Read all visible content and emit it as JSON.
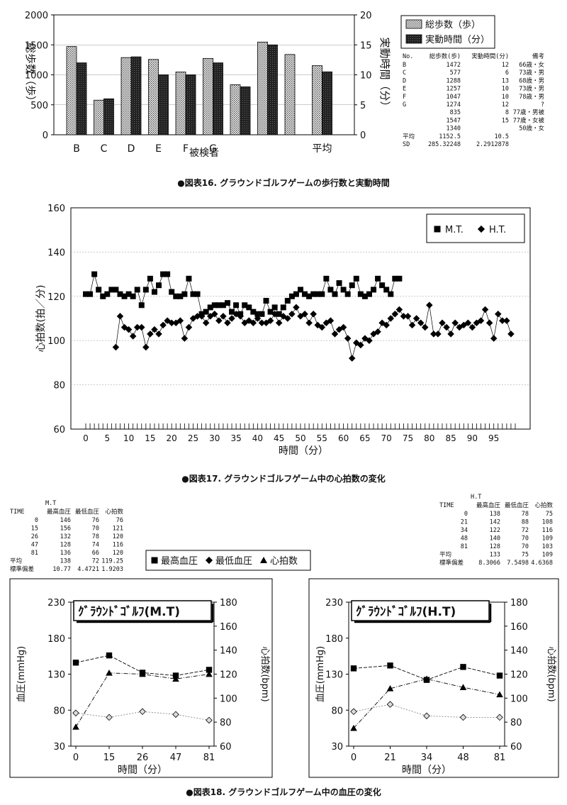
{
  "chart_data": [
    {
      "id": "fig16",
      "type": "bar",
      "caption": "●図表16. グラウンドゴルフゲームの歩行数と実動時間",
      "xlabel": "被検者",
      "ylabel_left": "総歩数（歩）",
      "ylabel_right": "実動時間（分）",
      "ylim_left": [
        0,
        2000
      ],
      "ylim_right": [
        0,
        20
      ],
      "left_ticks": [
        "0",
        "500",
        "1000",
        "1500",
        "2000"
      ],
      "right_ticks": [
        "0",
        "5",
        "10",
        "15",
        "20"
      ],
      "categories": [
        "B",
        "C",
        "D",
        "E",
        "F",
        "G",
        "",
        "",
        "",
        "平均"
      ],
      "series": [
        {
          "name": "総歩数（歩）",
          "axis": "left",
          "values": [
            1472,
            577,
            1288,
            1257,
            1047,
            1274,
            835,
            1547,
            1340,
            1152.5
          ]
        },
        {
          "name": "実動時間（分）",
          "axis": "right",
          "values": [
            12,
            6,
            13,
            10,
            10,
            12,
            8,
            15,
            null,
            10.5
          ]
        }
      ],
      "legend": "top-right",
      "table": {
        "headers": [
          "No.",
          "総歩数(歩)",
          "実動時間(分)",
          "備考"
        ],
        "rows": [
          [
            "B",
            "1472",
            "12",
            "66歳・女"
          ],
          [
            "C",
            "577",
            "6",
            "73歳・男"
          ],
          [
            "D",
            "1288",
            "13",
            "68歳・男"
          ],
          [
            "E",
            "1257",
            "10",
            "73歳・男"
          ],
          [
            "F",
            "1047",
            "10",
            "78歳・男"
          ],
          [
            "G",
            "1274",
            "12",
            "?"
          ],
          [
            "",
            "835",
            "8",
            "77歳・男被"
          ],
          [
            "",
            "1547",
            "15",
            "77歳・女被"
          ],
          [
            "",
            "1340",
            "",
            "50歳・女"
          ],
          [
            "平均",
            "1152.5",
            "10.5",
            ""
          ],
          [
            "SD",
            "285.32248",
            "2.2912878",
            ""
          ]
        ]
      }
    },
    {
      "id": "fig17",
      "type": "line",
      "caption": "●図表17. グラウンドゴルフゲーム中の心拍数の変化",
      "xlabel": "時間（分）",
      "ylabel": "心拍数(拍／分)",
      "ylim": [
        60,
        160
      ],
      "xlim": [
        0,
        100
      ],
      "x_ticks": [
        "0",
        "5",
        "10",
        "15",
        "20",
        "25",
        "30",
        "35",
        "40",
        "45",
        "50",
        "55",
        "60",
        "65",
        "70",
        "75",
        "80",
        "85",
        "90",
        "95"
      ],
      "y_ticks": [
        "60",
        "80",
        "100",
        "120",
        "140",
        "160"
      ],
      "legend": "top-right",
      "series": [
        {
          "name": "M.T.",
          "x": [
            0,
            1,
            2,
            3,
            4,
            5,
            6,
            7,
            8,
            9,
            10,
            11,
            12,
            13,
            14,
            15,
            16,
            17,
            18,
            19,
            20,
            21,
            22,
            23,
            24,
            25,
            26,
            27,
            28,
            29,
            30,
            31,
            32,
            33,
            34,
            35,
            36,
            37,
            38,
            39,
            40,
            41,
            42,
            43,
            44,
            45,
            46,
            47,
            48,
            49,
            50,
            51,
            52,
            53,
            54,
            55,
            56,
            57,
            58,
            59,
            60,
            61,
            62,
            63,
            64,
            65,
            66,
            67,
            68,
            69,
            70,
            71,
            72,
            73
          ],
          "y": [
            121,
            121,
            130,
            123,
            120,
            121,
            123,
            123,
            121,
            120,
            121,
            120,
            123,
            116,
            123,
            128,
            122,
            125,
            130,
            130,
            122,
            120,
            120,
            121,
            128,
            121,
            121,
            112,
            113,
            115,
            116,
            116,
            116,
            117,
            113,
            116,
            112,
            116,
            115,
            113,
            112,
            112,
            118,
            113,
            115,
            112,
            115,
            118,
            120,
            121,
            123,
            121,
            120,
            121,
            121,
            121,
            128,
            123,
            121,
            126,
            123,
            121,
            125,
            128,
            121,
            120,
            121,
            123,
            128,
            125,
            123,
            121,
            128,
            128
          ]
        },
        {
          "name": "H.T.",
          "x": [
            7,
            8,
            9,
            10,
            11,
            12,
            13,
            14,
            15,
            16,
            17,
            18,
            19,
            20,
            21,
            22,
            23,
            24,
            25,
            26,
            27,
            28,
            29,
            30,
            31,
            32,
            33,
            34,
            35,
            36,
            37,
            38,
            39,
            40,
            41,
            42,
            43,
            44,
            45,
            46,
            47,
            48,
            49,
            50,
            51,
            52,
            53,
            54,
            55,
            56,
            57,
            58,
            59,
            60,
            61,
            62,
            63,
            64,
            65,
            66,
            67,
            68,
            69,
            70,
            71,
            72,
            73,
            74,
            75,
            76,
            77,
            78,
            79,
            80,
            81,
            82,
            83,
            84,
            85,
            86,
            87,
            88,
            89,
            90,
            91,
            92,
            93,
            94,
            95,
            96,
            97,
            98,
            99
          ],
          "y": [
            97,
            111,
            106,
            105,
            102,
            106,
            106,
            97,
            103,
            105,
            103,
            107,
            109,
            108,
            108,
            109,
            101,
            106,
            110,
            111,
            111,
            108,
            111,
            112,
            109,
            111,
            108,
            110,
            112,
            111,
            108,
            109,
            108,
            110,
            108,
            108,
            109,
            112,
            108,
            111,
            110,
            112,
            115,
            111,
            112,
            108,
            112,
            107,
            106,
            108,
            109,
            103,
            105,
            106,
            101,
            92,
            99,
            98,
            101,
            100,
            103,
            104,
            108,
            107,
            110,
            112,
            114,
            111,
            111,
            107,
            110,
            108,
            106,
            116,
            103,
            103,
            108,
            106,
            103,
            108,
            106,
            107,
            108,
            106,
            108,
            109,
            114,
            108,
            101,
            112,
            109,
            109,
            103
          ]
        }
      ]
    },
    {
      "id": "fig18_mt",
      "type": "line",
      "title": "ｸﾞﾗｳﾝﾄﾞｺﾞﾙﾌ(M.T)",
      "xlabel": "時間（分）",
      "ylabel_left": "血圧(mmHg)",
      "ylabel_right": "心拍数(bpm)",
      "categories": [
        "0",
        "15",
        "26",
        "47",
        "81"
      ],
      "ylim_left": [
        30,
        230
      ],
      "ylim_right": [
        60,
        180
      ],
      "left_ticks": [
        "30",
        "80",
        "130",
        "180",
        "230"
      ],
      "right_ticks": [
        "60",
        "80",
        "100",
        "120",
        "140",
        "160",
        "180"
      ],
      "series": [
        {
          "name": "最高血圧",
          "axis": "left",
          "values": [
            146,
            156,
            132,
            128,
            136
          ]
        },
        {
          "name": "最低血圧",
          "axis": "left",
          "values": [
            76,
            70,
            78,
            74,
            66
          ]
        },
        {
          "name": "心拍数",
          "axis": "right",
          "values": [
            76,
            121,
            120,
            116,
            120
          ]
        }
      ],
      "table": {
        "name": "M.T",
        "headers": [
          "TIME",
          "最高血圧",
          "最低血圧",
          "心拍数"
        ],
        "rows": [
          [
            "0",
            "146",
            "76",
            "76"
          ],
          [
            "15",
            "156",
            "70",
            "121"
          ],
          [
            "26",
            "132",
            "78",
            "120"
          ],
          [
            "47",
            "128",
            "74",
            "116"
          ],
          [
            "81",
            "136",
            "66",
            "120"
          ],
          [
            "平均",
            "138",
            "72",
            "119.25"
          ],
          [
            "標準偏差",
            "10.77",
            "4.4721",
            "1.9203"
          ]
        ]
      }
    },
    {
      "id": "fig18_ht",
      "type": "line",
      "title": "ｸﾞﾗｳﾝﾄﾞｺﾞﾙﾌ(H.T)",
      "xlabel": "時間（分）",
      "ylabel_left": "血圧(mmHg)",
      "ylabel_right": "心拍数(bpm)",
      "categories": [
        "0",
        "21",
        "34",
        "48",
        "81"
      ],
      "ylim_left": [
        30,
        230
      ],
      "ylim_right": [
        60,
        180
      ],
      "left_ticks": [
        "30",
        "80",
        "130",
        "180",
        "230"
      ],
      "right_ticks": [
        "60",
        "80",
        "100",
        "120",
        "140",
        "160",
        "180"
      ],
      "series": [
        {
          "name": "最高血圧",
          "axis": "left",
          "values": [
            138,
            142,
            122,
            140,
            128
          ]
        },
        {
          "name": "最低血圧",
          "axis": "left",
          "values": [
            78,
            88,
            72,
            70,
            70
          ]
        },
        {
          "name": "心拍数",
          "axis": "right",
          "values": [
            75,
            108,
            116,
            109,
            103
          ]
        }
      ],
      "table": {
        "name": "H.T",
        "headers": [
          "TIME",
          "最高血圧",
          "最低血圧",
          "心拍数"
        ],
        "rows": [
          [
            "0",
            "138",
            "78",
            "75"
          ],
          [
            "21",
            "142",
            "88",
            "108"
          ],
          [
            "34",
            "122",
            "72",
            "116"
          ],
          [
            "48",
            "140",
            "70",
            "109"
          ],
          [
            "81",
            "128",
            "70",
            "103"
          ],
          [
            "平均",
            "133",
            "75",
            "109"
          ],
          [
            "標準偏差",
            "8.3066",
            "7.5498",
            "4.6368"
          ]
        ]
      }
    }
  ],
  "fig18_legend": [
    "最高血圧",
    "最低血圧",
    "心拍数"
  ],
  "fig18_caption": "●図表18. グラウンドゴルフゲーム中の血圧の変化"
}
